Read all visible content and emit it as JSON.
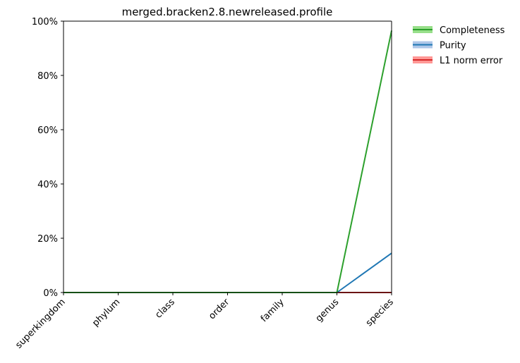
{
  "chart_data": {
    "type": "line",
    "title": "merged.bracken2.8.newreleased.profile",
    "xlabel": "",
    "ylabel": "",
    "categories": [
      "superkingdom",
      "phylum",
      "class",
      "order",
      "family",
      "genus",
      "species"
    ],
    "ylim": [
      0,
      100
    ],
    "yticks": [
      "0%",
      "20%",
      "40%",
      "60%",
      "80%",
      "100%"
    ],
    "ytick_values": [
      0,
      20,
      40,
      60,
      80,
      100
    ],
    "grid": false,
    "legend_position": "outside-top-right",
    "series": [
      {
        "name": "Completeness",
        "color": "#2ca02c",
        "band_color": "#98df8a",
        "values": [
          0,
          0,
          0,
          0,
          0,
          0,
          96.5
        ]
      },
      {
        "name": "Purity",
        "color": "#1f77b4",
        "band_color": "#aec7e8",
        "values": [
          0,
          0,
          0,
          0,
          0,
          0,
          14.5
        ]
      },
      {
        "name": "L1 norm error",
        "color": "#d62728",
        "band_color": "#ff9896",
        "values": [
          0,
          0,
          0,
          0,
          0,
          0,
          0
        ]
      }
    ]
  }
}
